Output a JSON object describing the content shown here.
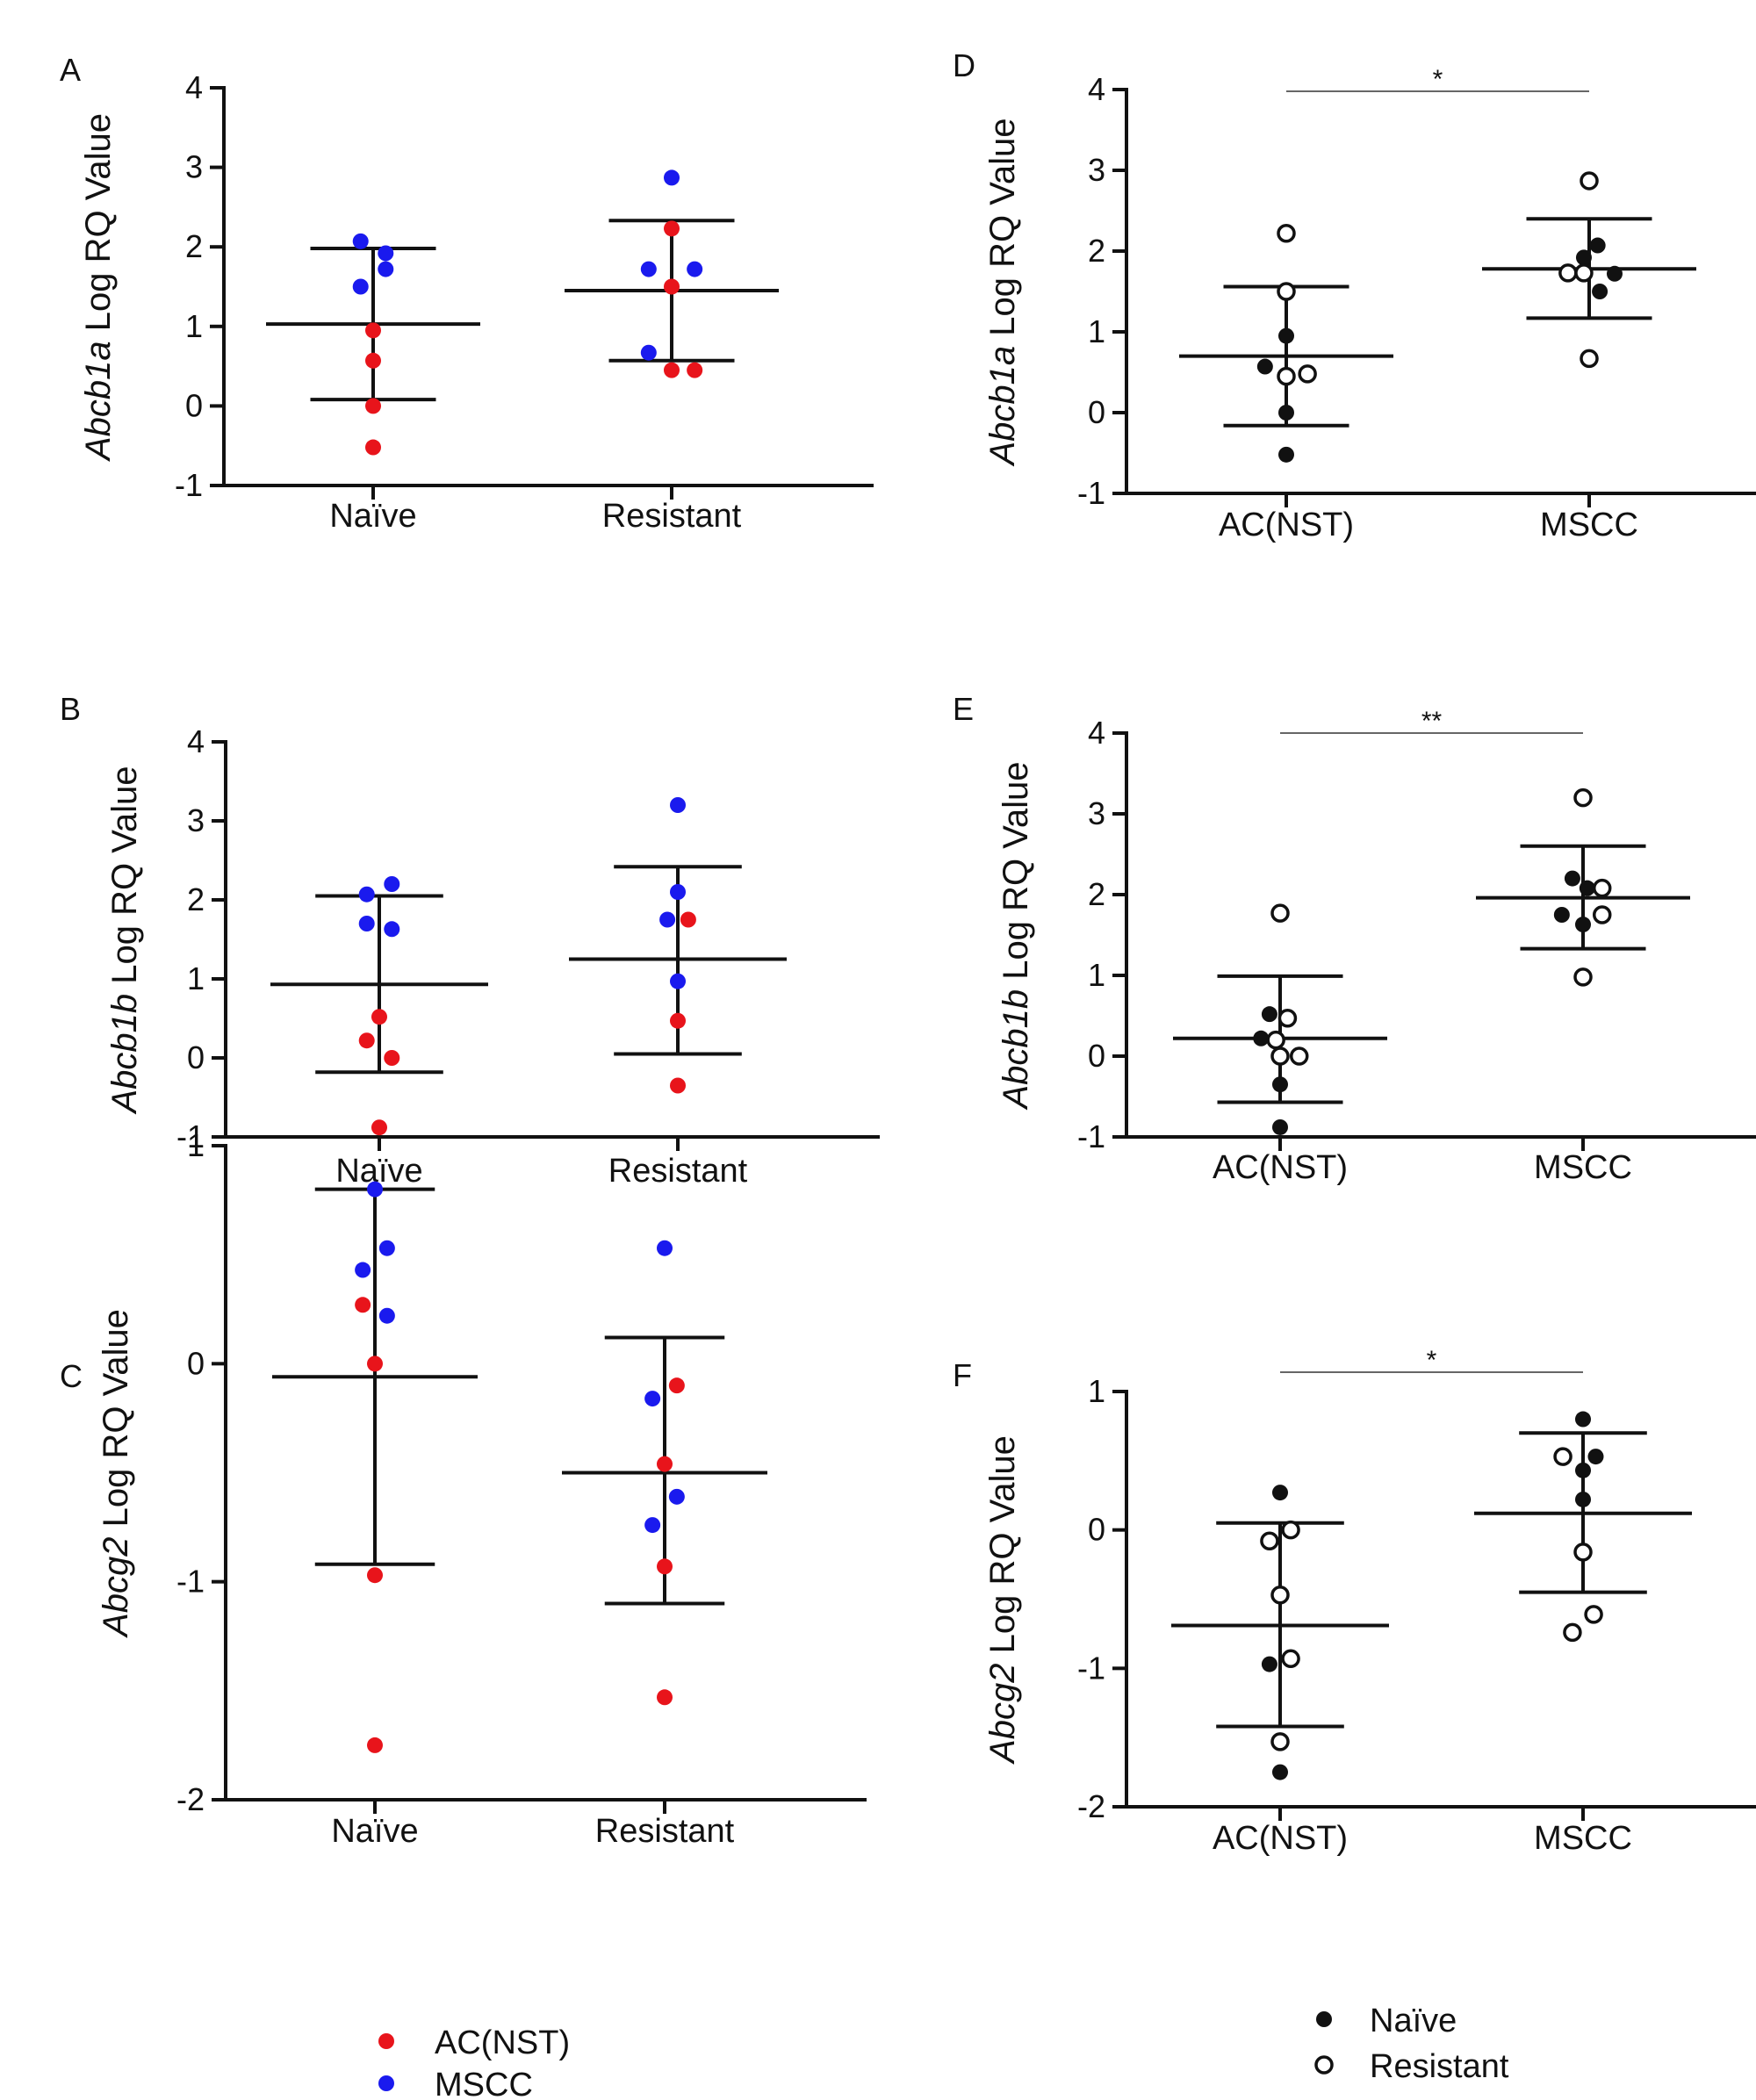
{
  "chart_data": [
    {
      "panel": "A",
      "type": "scatter",
      "coloring": "group",
      "ylabel_italic": "Abcb1a",
      "ylabel_rest": " Log RQ Value",
      "ylim": [
        -1,
        4
      ],
      "yticks": [
        -1,
        0,
        1,
        2,
        3,
        4
      ],
      "categories": [
        "Naïve",
        "Resistant"
      ],
      "summary": [
        {
          "mean": 1.03,
          "upper": 1.98,
          "lower": 0.08
        },
        {
          "mean": 1.45,
          "upper": 2.33,
          "lower": 0.57
        }
      ],
      "points": [
        {
          "cat": 0,
          "y": 2.07,
          "group": 1,
          "dx": -0.12
        },
        {
          "cat": 0,
          "y": 1.92,
          "group": 1,
          "dx": 0.12
        },
        {
          "cat": 0,
          "y": 1.72,
          "group": 1,
          "dx": 0.12
        },
        {
          "cat": 0,
          "y": 1.5,
          "group": 1,
          "dx": -0.12
        },
        {
          "cat": 0,
          "y": 0.95,
          "group": 0,
          "dx": 0
        },
        {
          "cat": 0,
          "y": 0.57,
          "group": 0,
          "dx": 0
        },
        {
          "cat": 0,
          "y": 0.0,
          "group": 0,
          "dx": 0
        },
        {
          "cat": 0,
          "y": -0.52,
          "group": 0,
          "dx": 0
        },
        {
          "cat": 1,
          "y": 2.87,
          "group": 1,
          "dx": 0
        },
        {
          "cat": 1,
          "y": 2.23,
          "group": 0,
          "dx": 0
        },
        {
          "cat": 1,
          "y": 1.72,
          "group": 1,
          "dx": -0.22
        },
        {
          "cat": 1,
          "y": 1.72,
          "group": 1,
          "dx": 0.22
        },
        {
          "cat": 1,
          "y": 1.5,
          "group": 0,
          "dx": 0
        },
        {
          "cat": 1,
          "y": 0.67,
          "group": 1,
          "dx": -0.22
        },
        {
          "cat": 1,
          "y": 0.45,
          "group": 0,
          "dx": 0
        },
        {
          "cat": 1,
          "y": 0.45,
          "group": 0,
          "dx": 0.22
        }
      ],
      "significance": ""
    },
    {
      "panel": "B",
      "type": "scatter",
      "coloring": "group",
      "ylabel_italic": "Abcb1b",
      "ylabel_rest": " Log RQ Value",
      "ylim": [
        -1,
        4
      ],
      "yticks": [
        -1,
        0,
        1,
        2,
        3,
        4
      ],
      "categories": [
        "Naïve",
        "Resistant"
      ],
      "summary": [
        {
          "mean": 0.93,
          "upper": 2.05,
          "lower": -0.18
        },
        {
          "mean": 1.25,
          "upper": 2.42,
          "lower": 0.05
        }
      ],
      "points": [
        {
          "cat": 0,
          "y": 2.2,
          "group": 1,
          "dx": 0.12
        },
        {
          "cat": 0,
          "y": 2.07,
          "group": 1,
          "dx": -0.12
        },
        {
          "cat": 0,
          "y": 1.7,
          "group": 1,
          "dx": -0.12
        },
        {
          "cat": 0,
          "y": 1.63,
          "group": 1,
          "dx": 0.12
        },
        {
          "cat": 0,
          "y": 0.52,
          "group": 0,
          "dx": 0
        },
        {
          "cat": 0,
          "y": 0.22,
          "group": 0,
          "dx": -0.12
        },
        {
          "cat": 0,
          "y": 0.0,
          "group": 0,
          "dx": 0.12
        },
        {
          "cat": 0,
          "y": -0.88,
          "group": 0,
          "dx": 0
        },
        {
          "cat": 1,
          "y": 3.2,
          "group": 1,
          "dx": 0
        },
        {
          "cat": 1,
          "y": 2.1,
          "group": 1,
          "dx": 0
        },
        {
          "cat": 1,
          "y": 1.75,
          "group": 1,
          "dx": -0.1
        },
        {
          "cat": 1,
          "y": 1.75,
          "group": 0,
          "dx": 0.1
        },
        {
          "cat": 1,
          "y": 0.97,
          "group": 1,
          "dx": 0
        },
        {
          "cat": 1,
          "y": 0.47,
          "group": 0,
          "dx": 0
        },
        {
          "cat": 1,
          "y": -0.35,
          "group": 0,
          "dx": 0
        }
      ],
      "significance": ""
    },
    {
      "panel": "C",
      "type": "scatter",
      "coloring": "group",
      "ylabel_italic": "Abcg2",
      "ylabel_rest": " Log RQ Value",
      "ylim": [
        -2,
        1
      ],
      "yticks": [
        -2,
        -1,
        0,
        1
      ],
      "categories": [
        "Naïve",
        "Resistant"
      ],
      "summary": [
        {
          "mean": -0.06,
          "upper": 0.8,
          "lower": -0.92
        },
        {
          "mean": -0.5,
          "upper": 0.12,
          "lower": -1.1
        }
      ],
      "points": [
        {
          "cat": 0,
          "y": 0.8,
          "group": 1,
          "dx": 0
        },
        {
          "cat": 0,
          "y": 0.53,
          "group": 1,
          "dx": 0.12
        },
        {
          "cat": 0,
          "y": 0.43,
          "group": 1,
          "dx": -0.12
        },
        {
          "cat": 0,
          "y": 0.27,
          "group": 0,
          "dx": -0.12
        },
        {
          "cat": 0,
          "y": 0.22,
          "group": 1,
          "dx": 0.12
        },
        {
          "cat": 0,
          "y": 0.0,
          "group": 0,
          "dx": 0
        },
        {
          "cat": 0,
          "y": -0.97,
          "group": 0,
          "dx": 0
        },
        {
          "cat": 0,
          "y": -1.75,
          "group": 0,
          "dx": 0
        },
        {
          "cat": 1,
          "y": 0.53,
          "group": 1,
          "dx": 0
        },
        {
          "cat": 1,
          "y": -0.1,
          "group": 0,
          "dx": 0.12
        },
        {
          "cat": 1,
          "y": -0.16,
          "group": 1,
          "dx": -0.12
        },
        {
          "cat": 1,
          "y": -0.46,
          "group": 0,
          "dx": 0
        },
        {
          "cat": 1,
          "y": -0.61,
          "group": 1,
          "dx": 0.12
        },
        {
          "cat": 1,
          "y": -0.74,
          "group": 1,
          "dx": -0.12
        },
        {
          "cat": 1,
          "y": -0.93,
          "group": 0,
          "dx": 0
        },
        {
          "cat": 1,
          "y": -1.53,
          "group": 0,
          "dx": 0
        }
      ],
      "significance": ""
    },
    {
      "panel": "D",
      "type": "scatter",
      "coloring": "fill",
      "ylabel_italic": "Abcb1a",
      "ylabel_rest": " Log RQ Value",
      "ylim": [
        -1,
        4
      ],
      "yticks": [
        -1,
        0,
        1,
        2,
        3,
        4
      ],
      "categories": [
        "AC(NST)",
        "MSCC"
      ],
      "summary": [
        {
          "mean": 0.7,
          "upper": 1.56,
          "lower": -0.16
        },
        {
          "mean": 1.78,
          "upper": 2.4,
          "lower": 1.17
        }
      ],
      "points": [
        {
          "cat": 0,
          "y": 2.22,
          "group": 1,
          "dx": 0
        },
        {
          "cat": 0,
          "y": 1.5,
          "group": 1,
          "dx": 0
        },
        {
          "cat": 0,
          "y": 0.95,
          "group": 0,
          "dx": 0
        },
        {
          "cat": 0,
          "y": 0.57,
          "group": 0,
          "dx": -0.2
        },
        {
          "cat": 0,
          "y": 0.48,
          "group": 1,
          "dx": 0.2
        },
        {
          "cat": 0,
          "y": 0.45,
          "group": 1,
          "dx": 0
        },
        {
          "cat": 0,
          "y": 0.0,
          "group": 0,
          "dx": 0
        },
        {
          "cat": 0,
          "y": -0.52,
          "group": 0,
          "dx": 0
        },
        {
          "cat": 1,
          "y": 2.87,
          "group": 1,
          "dx": 0
        },
        {
          "cat": 1,
          "y": 2.07,
          "group": 0,
          "dx": 0.08
        },
        {
          "cat": 1,
          "y": 1.92,
          "group": 0,
          "dx": -0.05
        },
        {
          "cat": 1,
          "y": 1.73,
          "group": 1,
          "dx": -0.2
        },
        {
          "cat": 1,
          "y": 1.73,
          "group": 1,
          "dx": -0.05
        },
        {
          "cat": 1,
          "y": 1.72,
          "group": 0,
          "dx": 0.24
        },
        {
          "cat": 1,
          "y": 1.5,
          "group": 0,
          "dx": 0.1
        },
        {
          "cat": 1,
          "y": 0.67,
          "group": 1,
          "dx": 0
        }
      ],
      "significance": "*"
    },
    {
      "panel": "E",
      "type": "scatter",
      "coloring": "fill",
      "ylabel_italic": "Abcb1b",
      "ylabel_rest": " Log RQ Value",
      "ylim": [
        -1,
        4
      ],
      "yticks": [
        -1,
        0,
        1,
        2,
        3,
        4
      ],
      "categories": [
        "AC(NST)",
        "MSCC"
      ],
      "summary": [
        {
          "mean": 0.22,
          "upper": 0.99,
          "lower": -0.57
        },
        {
          "mean": 1.96,
          "upper": 2.6,
          "lower": 1.33
        }
      ],
      "points": [
        {
          "cat": 0,
          "y": 1.77,
          "group": 1,
          "dx": 0
        },
        {
          "cat": 0,
          "y": 0.52,
          "group": 0,
          "dx": -0.1
        },
        {
          "cat": 0,
          "y": 0.47,
          "group": 1,
          "dx": 0.07
        },
        {
          "cat": 0,
          "y": 0.22,
          "group": 0,
          "dx": -0.18
        },
        {
          "cat": 0,
          "y": 0.2,
          "group": 1,
          "dx": -0.04
        },
        {
          "cat": 0,
          "y": 0.0,
          "group": 1,
          "dx": 0
        },
        {
          "cat": 0,
          "y": 0.0,
          "group": 1,
          "dx": 0.18
        },
        {
          "cat": 0,
          "y": -0.35,
          "group": 0,
          "dx": 0
        },
        {
          "cat": 0,
          "y": -0.88,
          "group": 0,
          "dx": 0
        },
        {
          "cat": 1,
          "y": 3.2,
          "group": 1,
          "dx": 0
        },
        {
          "cat": 1,
          "y": 2.2,
          "group": 0,
          "dx": -0.1
        },
        {
          "cat": 1,
          "y": 2.08,
          "group": 0,
          "dx": 0.04
        },
        {
          "cat": 1,
          "y": 2.08,
          "group": 1,
          "dx": 0.18
        },
        {
          "cat": 1,
          "y": 1.75,
          "group": 0,
          "dx": -0.2
        },
        {
          "cat": 1,
          "y": 1.75,
          "group": 1,
          "dx": 0.18
        },
        {
          "cat": 1,
          "y": 1.63,
          "group": 0,
          "dx": 0
        },
        {
          "cat": 1,
          "y": 0.98,
          "group": 1,
          "dx": 0
        }
      ],
      "significance": "**"
    },
    {
      "panel": "F",
      "type": "scatter",
      "coloring": "fill",
      "ylabel_italic": "Abcg2",
      "ylabel_rest": " Log RQ Value",
      "ylim": [
        -2,
        1
      ],
      "yticks": [
        -2,
        -1,
        0,
        1
      ],
      "categories": [
        "AC(NST)",
        "MSCC"
      ],
      "summary": [
        {
          "mean": -0.69,
          "upper": 0.05,
          "lower": -1.42
        },
        {
          "mean": 0.12,
          "upper": 0.7,
          "lower": -0.45
        }
      ],
      "points": [
        {
          "cat": 0,
          "y": 0.27,
          "group": 0,
          "dx": 0
        },
        {
          "cat": 0,
          "y": 0.0,
          "group": 1,
          "dx": 0.1
        },
        {
          "cat": 0,
          "y": -0.08,
          "group": 1,
          "dx": -0.1
        },
        {
          "cat": 0,
          "y": -0.47,
          "group": 1,
          "dx": 0
        },
        {
          "cat": 0,
          "y": -0.93,
          "group": 1,
          "dx": 0.1
        },
        {
          "cat": 0,
          "y": -0.97,
          "group": 0,
          "dx": -0.1
        },
        {
          "cat": 0,
          "y": -1.53,
          "group": 1,
          "dx": 0
        },
        {
          "cat": 0,
          "y": -1.75,
          "group": 0,
          "dx": 0
        },
        {
          "cat": 1,
          "y": 0.8,
          "group": 0,
          "dx": 0
        },
        {
          "cat": 1,
          "y": 0.53,
          "group": 1,
          "dx": -0.19
        },
        {
          "cat": 1,
          "y": 0.53,
          "group": 0,
          "dx": 0.12
        },
        {
          "cat": 1,
          "y": 0.43,
          "group": 0,
          "dx": 0
        },
        {
          "cat": 1,
          "y": 0.22,
          "group": 0,
          "dx": 0
        },
        {
          "cat": 1,
          "y": -0.16,
          "group": 1,
          "dx": 0
        },
        {
          "cat": 1,
          "y": -0.61,
          "group": 1,
          "dx": 0.1
        },
        {
          "cat": 1,
          "y": -0.74,
          "group": 1,
          "dx": -0.1
        }
      ],
      "significance": "*"
    }
  ],
  "legends": {
    "left": {
      "items": [
        {
          "label": "AC(NST)",
          "color": "#e8141b"
        },
        {
          "label": "MSCC",
          "color": "#1a1aee"
        }
      ]
    },
    "right": {
      "items": [
        {
          "label": "Naïve",
          "style": "filled"
        },
        {
          "label": "Resistant",
          "style": "open"
        }
      ]
    }
  },
  "colors": {
    "red": "#e8141b",
    "blue": "#1a1aee",
    "black": "#111111"
  }
}
